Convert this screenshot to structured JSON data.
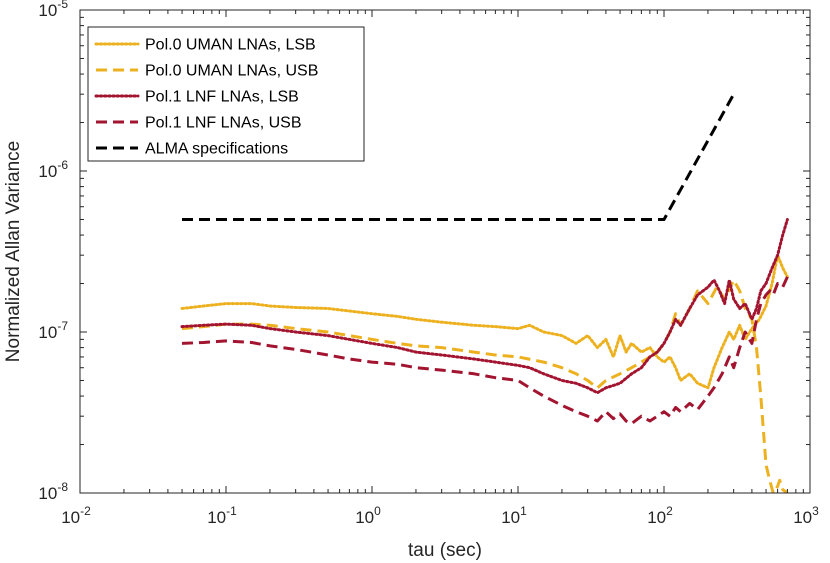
{
  "chart_data": {
    "type": "line",
    "xscale": "log",
    "yscale": "log",
    "xlabel": "tau (sec)",
    "ylabel": "Normalized Allan Variance",
    "xlim": [
      0.01,
      1000
    ],
    "ylim": [
      1e-08,
      1e-05
    ],
    "grid": false,
    "legend_position": "top-left",
    "x_ticks": [
      {
        "base": "10",
        "exp": "-2",
        "value": 0.01
      },
      {
        "base": "10",
        "exp": "-1",
        "value": 0.1
      },
      {
        "base": "10",
        "exp": "0",
        "value": 1
      },
      {
        "base": "10",
        "exp": "1",
        "value": 10
      },
      {
        "base": "10",
        "exp": "2",
        "value": 100
      },
      {
        "base": "10",
        "exp": "3",
        "value": 1000
      }
    ],
    "y_ticks": [
      {
        "base": "10",
        "exp": "-8",
        "value": 1e-08
      },
      {
        "base": "10",
        "exp": "-7",
        "value": 1e-07
      },
      {
        "base": "10",
        "exp": "-6",
        "value": 1e-06
      },
      {
        "base": "10",
        "exp": "-5",
        "value": 1e-05
      }
    ],
    "series": [
      {
        "name": "Pol.0 UMAN LNAs, LSB",
        "color": "#EDB120",
        "style": "dotted",
        "x": [
          0.05,
          0.07,
          0.1,
          0.15,
          0.2,
          0.3,
          0.5,
          0.7,
          1,
          1.5,
          2,
          3,
          5,
          7,
          10,
          12,
          15,
          20,
          25,
          30,
          35,
          40,
          45,
          50,
          55,
          60,
          70,
          80,
          90,
          100,
          110,
          120,
          130,
          150,
          170,
          200,
          220,
          250,
          280,
          300,
          330,
          360,
          400,
          450,
          500,
          550,
          600,
          650,
          700
        ],
        "y": [
          1.4e-07,
          1.45e-07,
          1.5e-07,
          1.5e-07,
          1.45e-07,
          1.42e-07,
          1.4e-07,
          1.35e-07,
          1.3e-07,
          1.25e-07,
          1.2e-07,
          1.15e-07,
          1.1e-07,
          1.08e-07,
          1.05e-07,
          1.1e-07,
          1e-07,
          9.5e-08,
          8.5e-08,
          9.5e-08,
          8e-08,
          9e-08,
          7e-08,
          9.5e-08,
          7.5e-08,
          8.5e-08,
          7.5e-08,
          8e-08,
          7e-08,
          6.5e-08,
          7e-08,
          6e-08,
          5e-08,
          5.5e-08,
          4.8e-08,
          4.5e-08,
          6e-08,
          8e-08,
          1e-07,
          9e-08,
          1.1e-07,
          9e-08,
          1.05e-07,
          1.2e-07,
          1.45e-07,
          2e-07,
          3e-07,
          2.5e-07,
          2.2e-07
        ]
      },
      {
        "name": "Pol.0 UMAN LNAs, USB",
        "color": "#EDB120",
        "style": "dashed",
        "x": [
          0.05,
          0.07,
          0.1,
          0.15,
          0.2,
          0.3,
          0.5,
          0.7,
          1,
          1.5,
          2,
          3,
          5,
          7,
          10,
          15,
          20,
          25,
          30,
          35,
          40,
          50,
          60,
          70,
          80,
          90,
          100,
          110,
          120,
          130,
          150,
          170,
          200,
          230,
          260,
          300,
          330,
          360,
          400,
          430,
          460,
          500,
          530,
          560,
          600,
          620,
          650,
          700
        ],
        "y": [
          1.05e-07,
          1.08e-07,
          1.12e-07,
          1.12e-07,
          1.1e-07,
          1.05e-07,
          1e-07,
          9.5e-08,
          9e-08,
          8.5e-08,
          8.2e-08,
          8e-08,
          7.5e-08,
          7.2e-08,
          7e-08,
          6.5e-08,
          6e-08,
          5.5e-08,
          5e-08,
          4.5e-08,
          5e-08,
          5.5e-08,
          6e-08,
          6.5e-08,
          7e-08,
          7.5e-08,
          8.5e-08,
          1e-07,
          1.3e-07,
          1.1e-07,
          1.4e-07,
          1.8e-07,
          1.5e-07,
          1.9e-07,
          1.6e-07,
          2.1e-07,
          1.8e-07,
          1.4e-07,
          1.2e-07,
          8e-08,
          4e-08,
          1.5e-08,
          1.2e-08,
          1e-08,
          1.1e-08,
          1.2e-08,
          1.05e-08,
          1e-08
        ]
      },
      {
        "name": "Pol.1 LNF LNAs, LSB",
        "color": "#A2142F",
        "style": "dotted",
        "x": [
          0.05,
          0.07,
          0.1,
          0.15,
          0.2,
          0.3,
          0.5,
          0.7,
          1,
          1.5,
          2,
          3,
          5,
          7,
          10,
          12,
          15,
          20,
          25,
          30,
          35,
          40,
          50,
          60,
          70,
          80,
          90,
          100,
          110,
          120,
          130,
          150,
          170,
          200,
          220,
          240,
          260,
          280,
          300,
          330,
          360,
          400,
          430,
          460,
          500,
          550,
          600,
          650,
          700
        ],
        "y": [
          1.08e-07,
          1.1e-07,
          1.12e-07,
          1.1e-07,
          1.05e-07,
          1e-07,
          9.5e-08,
          9e-08,
          8.5e-08,
          8e-08,
          7.5e-08,
          7.2e-08,
          6.8e-08,
          6.5e-08,
          6.2e-08,
          6e-08,
          5.5e-08,
          5e-08,
          4.8e-08,
          4.5e-08,
          4.2e-08,
          4.5e-08,
          4.8e-08,
          5.5e-08,
          6e-08,
          7e-08,
          7.5e-08,
          8.5e-08,
          1e-07,
          1.2e-07,
          1.1e-07,
          1.4e-07,
          1.7e-07,
          1.9e-07,
          2.1e-07,
          1.8e-07,
          1.5e-07,
          2.1e-07,
          1.6e-07,
          1.4e-07,
          1.5e-07,
          1.2e-07,
          1.4e-07,
          1.8e-07,
          2e-07,
          2.5e-07,
          3e-07,
          4e-07,
          5e-07
        ]
      },
      {
        "name": "Pol.1 LNF LNAs, USB",
        "color": "#A2142F",
        "style": "dashed",
        "x": [
          0.05,
          0.07,
          0.1,
          0.15,
          0.2,
          0.3,
          0.5,
          0.7,
          1,
          1.5,
          2,
          3,
          5,
          7,
          10,
          12,
          15,
          20,
          25,
          30,
          35,
          40,
          45,
          50,
          55,
          60,
          70,
          80,
          90,
          100,
          110,
          120,
          130,
          150,
          170,
          200,
          220,
          250,
          280,
          300,
          330,
          360,
          400,
          430,
          460,
          500,
          530,
          560,
          600,
          650,
          700
        ],
        "y": [
          8.5e-08,
          8.6e-08,
          8.8e-08,
          8.6e-08,
          8.2e-08,
          7.8e-08,
          7.2e-08,
          6.8e-08,
          6.5e-08,
          6.3e-08,
          6e-08,
          5.8e-08,
          5.5e-08,
          5.2e-08,
          5e-08,
          4.5e-08,
          4e-08,
          3.5e-08,
          3.2e-08,
          3e-08,
          2.8e-08,
          3.2e-08,
          2.9e-08,
          3.1e-08,
          2.8e-08,
          2.7e-08,
          3e-08,
          2.8e-08,
          3e-08,
          3.2e-08,
          3e-08,
          3.4e-08,
          3.2e-08,
          3.6e-08,
          3.3e-08,
          4e-08,
          4.5e-08,
          5.5e-08,
          7e-08,
          6e-08,
          8e-08,
          1e-07,
          8.5e-08,
          1.2e-07,
          1.5e-07,
          1.7e-07,
          1.8e-07,
          1.7e-07,
          2e-07,
          1.9e-07,
          2.2e-07
        ]
      },
      {
        "name": "ALMA specifications",
        "color": "#000000",
        "style": "dashed",
        "x": [
          0.05,
          100,
          300
        ],
        "y": [
          5e-07,
          5e-07,
          3e-06
        ]
      }
    ]
  }
}
